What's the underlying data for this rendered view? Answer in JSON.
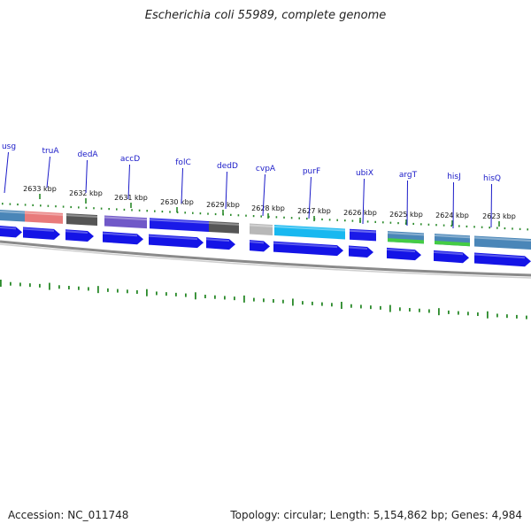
{
  "title": "Escherichia coli 55989, complete genome",
  "footer": {
    "accession": "Accession: NC_011748",
    "topology": "Topology: circular; Length: 5,154,862 bp; Genes: 4,984"
  },
  "kbp_labels": [
    {
      "text": "2633 kbp",
      "kbp": 2633
    },
    {
      "text": "2632 kbp",
      "kbp": 2632
    },
    {
      "text": "2631 kbp",
      "kbp": 2631
    },
    {
      "text": "2630 kbp",
      "kbp": 2630
    },
    {
      "text": "2629 kbp",
      "kbp": 2629
    },
    {
      "text": "2628 kbp",
      "kbp": 2628
    },
    {
      "text": "2627 kbp",
      "kbp": 2627
    },
    {
      "text": "2626 kbp",
      "kbp": 2626
    },
    {
      "text": "2625 kbp",
      "kbp": 2625
    },
    {
      "text": "2624 kbp",
      "kbp": 2624
    },
    {
      "text": "2623 kbp",
      "kbp": 2623
    }
  ],
  "genes": [
    {
      "label": "usg",
      "color": "#4a86b8"
    },
    {
      "label": "truA",
      "color": "#e87a7a"
    },
    {
      "label": "dedA",
      "color": "#555555"
    },
    {
      "label": "accD",
      "color": "#7058c8"
    },
    {
      "label": "folC",
      "color": "#1a1ae8"
    },
    {
      "label": "dedD",
      "color": "#555555"
    },
    {
      "label": "cvpA",
      "color": "#b8b8b8"
    },
    {
      "label": "purF",
      "color": "#18b8f0"
    },
    {
      "label": "ubiX",
      "color": "#1a1ae8"
    },
    {
      "label": "argT",
      "color": "#4a86b8"
    },
    {
      "label": "hisJ",
      "color": "#4a86b8"
    },
    {
      "label": "hisQ",
      "color": "#4a86b8"
    }
  ],
  "colors": {
    "tick": "#2a8a2a",
    "cds": "#1414e6",
    "backbone": "#8a8a8a",
    "label": "#1a1ac8",
    "green_stripe": "#44cc44"
  }
}
